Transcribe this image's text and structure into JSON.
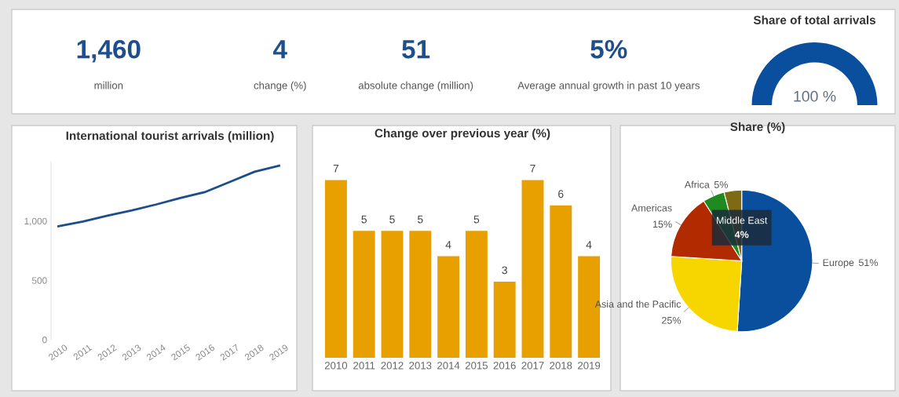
{
  "chart_data": [
    {
      "type": "other",
      "annotations": [
        "1,460",
        "million",
        "4",
        "change (%)",
        "51",
        "absolute change (million)",
        "5%",
        "Average annual growth in past 10 years"
      ]
    },
    {
      "type": "pie",
      "title": "Share of total arrivals",
      "categories": [
        null
      ],
      "values": [
        100
      ],
      "colors": [
        "#0a4f9e"
      ],
      "value_labels": [
        "100 %"
      ]
    },
    {
      "type": "line",
      "title": "International tourist arrivals (million)",
      "categories": [
        "2010",
        "2011",
        "2012",
        "2013",
        "2014",
        "2015",
        "2016",
        "2017",
        "2018",
        "2019"
      ],
      "series": [
        {
          "color": "#1c4f8a",
          "values": [
            955,
            995,
            1045,
            1090,
            1140,
            1195,
            1245,
            1330,
            1415,
            1465
          ]
        }
      ],
      "ylim": [
        0,
        1500
      ],
      "yticks": [
        0,
        500,
        {
          "value": 1000,
          "label": "1,000"
        }
      ],
      "grid": false
    },
    {
      "type": "bar",
      "title": "Change over previous year (%)",
      "categories": [
        "2010",
        "2011",
        "2012",
        "2013",
        "2014",
        "2015",
        "2016",
        "2017",
        "2018",
        "2019"
      ],
      "values": [
        7,
        5,
        5,
        5,
        4,
        5,
        3,
        7,
        6,
        4
      ],
      "color": "#e8a000",
      "data_labels": true
    },
    {
      "type": "pie",
      "title": "Share (%)",
      "categories": [
        "Europe",
        "Asia and the Pacific",
        "Americas",
        "Africa",
        "Middle East"
      ],
      "values": [
        51,
        25,
        15,
        5,
        4
      ],
      "colors": [
        "#0a4f9e",
        "#f7d600",
        "#b22a00",
        "#1f8a1f",
        "#7d6a12"
      ],
      "value_labels": [
        "51%",
        "25%",
        "15%",
        "5%",
        "4%"
      ]
    }
  ]
}
